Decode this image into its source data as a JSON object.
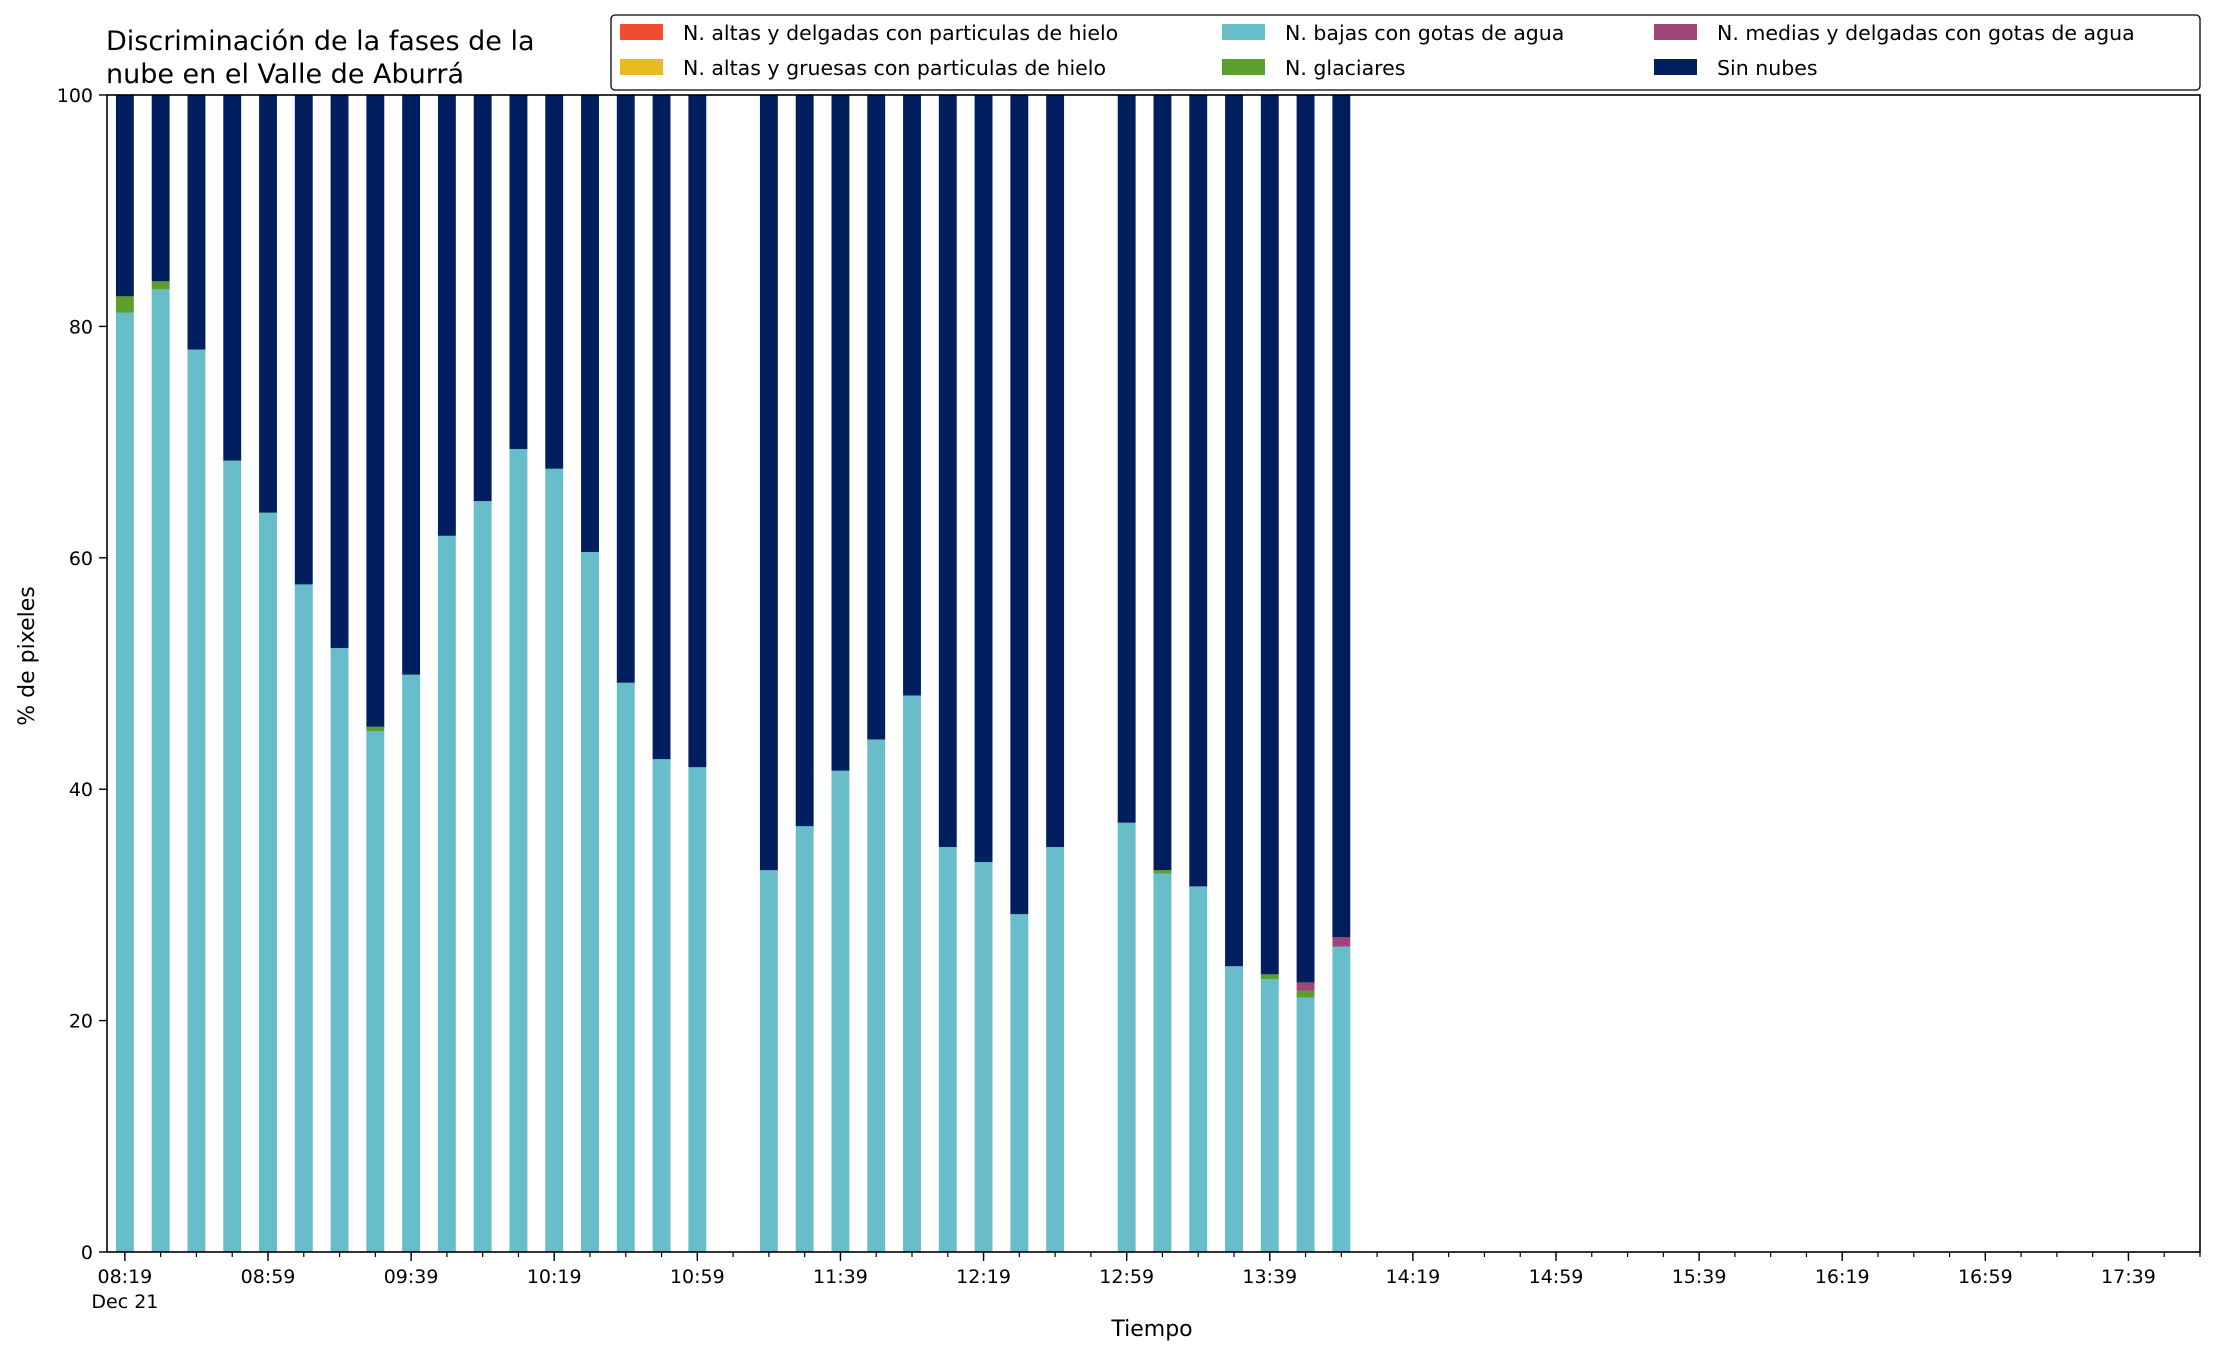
{
  "chart_data": {
    "type": "bar",
    "stacked": true,
    "title": "Discriminación de la fases de la\nnube en el Valle de Aburrá",
    "xlabel": "Tiempo",
    "ylabel": "% de pixeles",
    "ylim": [
      0,
      100
    ],
    "yticks": [
      0,
      20,
      40,
      60,
      80,
      100
    ],
    "xlim_minutes": [
      "08:14",
      "17:59"
    ],
    "interval_minutes": 10,
    "xtick_labels": [
      {
        "time": "08:19",
        "label": "08:19",
        "sublabel": "Dec 21"
      },
      {
        "time": "08:59",
        "label": "08:59"
      },
      {
        "time": "09:39",
        "label": "09:39"
      },
      {
        "time": "10:19",
        "label": "10:19"
      },
      {
        "time": "10:59",
        "label": "10:59"
      },
      {
        "time": "11:39",
        "label": "11:39"
      },
      {
        "time": "12:19",
        "label": "12:19"
      },
      {
        "time": "12:59",
        "label": "12:59"
      },
      {
        "time": "13:39",
        "label": "13:39"
      },
      {
        "time": "14:19",
        "label": "14:19"
      },
      {
        "time": "14:59",
        "label": "14:59"
      },
      {
        "time": "15:39",
        "label": "15:39"
      },
      {
        "time": "16:19",
        "label": "16:19"
      },
      {
        "time": "16:59",
        "label": "16:59"
      },
      {
        "time": "17:39",
        "label": "17:39"
      }
    ],
    "legend_placement": "top-right",
    "x": [
      "08:19",
      "08:29",
      "08:39",
      "08:49",
      "08:59",
      "09:09",
      "09:19",
      "09:29",
      "09:39",
      "09:49",
      "09:59",
      "10:09",
      "10:19",
      "10:29",
      "10:39",
      "10:49",
      "10:59",
      "11:09",
      "11:19",
      "11:29",
      "11:39",
      "11:49",
      "11:59",
      "12:09",
      "12:19",
      "12:29",
      "12:39",
      "12:49",
      "12:59",
      "13:09",
      "13:19",
      "13:29",
      "13:39",
      "13:49",
      "13:59"
    ],
    "series": [
      {
        "name": "N. bajas con gotas de agua",
        "color": "#67bdc9",
        "values": [
          81.2,
          83.2,
          78.0,
          68.4,
          63.9,
          57.7,
          52.2,
          45.0,
          49.9,
          61.9,
          64.9,
          69.4,
          67.7,
          60.5,
          49.2,
          42.6,
          41.9,
          null,
          33.0,
          36.8,
          41.6,
          44.3,
          48.1,
          35.0,
          33.7,
          29.2,
          35.0,
          null,
          37.1,
          32.7,
          31.6,
          24.7,
          23.6,
          22.0,
          26.4
        ]
      },
      {
        "name": "N. glaciares",
        "color": "#5c9f2c",
        "values": [
          1.4,
          0.7,
          0,
          0,
          0,
          0,
          0,
          0.4,
          0,
          0,
          0,
          0,
          0,
          0,
          0,
          0,
          0,
          null,
          0,
          0,
          0,
          0,
          0,
          0,
          0,
          0,
          0,
          null,
          0,
          0.3,
          0,
          0,
          0.4,
          0.6,
          0
        ]
      },
      {
        "name": "N. medias y delgadas con gotas de agua",
        "color": "#a0457c",
        "values": [
          0,
          0,
          0,
          0,
          0,
          0,
          0,
          0,
          0,
          0,
          0,
          0,
          0,
          0,
          0,
          0,
          0,
          null,
          0,
          0,
          0,
          0,
          0,
          0,
          0,
          0,
          0,
          null,
          0,
          0,
          0,
          0,
          0,
          0.7,
          0.8
        ]
      },
      {
        "name": "N. altas y delgadas con particulas de hielo",
        "color": "#ee4d2e",
        "values": [
          0,
          0,
          0,
          0,
          0,
          0,
          0,
          0,
          0,
          0,
          0,
          0,
          0,
          0,
          0,
          0,
          0,
          null,
          0,
          0,
          0,
          0,
          0,
          0,
          0,
          0,
          0,
          null,
          0,
          0,
          0,
          0,
          0,
          0,
          0
        ]
      },
      {
        "name": "N. altas y gruesas con particulas de hielo",
        "color": "#e8bb22",
        "values": [
          0,
          0,
          0,
          0,
          0,
          0,
          0,
          0,
          0,
          0,
          0,
          0,
          0,
          0,
          0,
          0,
          0,
          null,
          0,
          0,
          0,
          0,
          0,
          0,
          0,
          0,
          0,
          null,
          0,
          0,
          0,
          0,
          0,
          0,
          0
        ]
      },
      {
        "name": "Sin nubes",
        "color": "#011f5e",
        "values": [
          17.4,
          16.1,
          22.0,
          31.6,
          36.1,
          42.3,
          47.8,
          54.6,
          50.1,
          38.1,
          35.1,
          30.6,
          32.3,
          39.5,
          50.8,
          57.4,
          58.1,
          null,
          67.0,
          63.2,
          58.4,
          55.7,
          51.9,
          65.0,
          66.3,
          70.8,
          65.0,
          null,
          62.9,
          67.0,
          68.4,
          75.3,
          76.0,
          76.7,
          72.8
        ]
      }
    ],
    "legend": [
      [
        "N. altas y delgadas con particulas de hielo",
        "N. bajas con gotas de agua",
        "N. medias y delgadas con gotas de agua"
      ],
      [
        "N. altas y gruesas con particulas de hielo",
        "N. glaciares",
        "Sin nubes"
      ]
    ]
  }
}
